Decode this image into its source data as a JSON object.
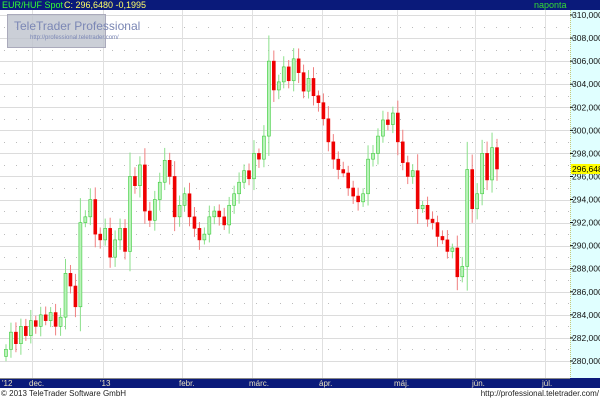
{
  "header": {
    "symbol": "EUR/HUF Spot",
    "quote": "C: 296,6480 -0,1995",
    "interval": "naponta"
  },
  "watermark": {
    "title": "TeleTrader Professional",
    "url": "http://professional.teletrader.com/"
  },
  "footer": {
    "copyright": "© 2013 TeleTrader Software GmbH",
    "url": "http://professional.teletrader.com/"
  },
  "colors": {
    "up_body": "#b9f2b9",
    "up_border": "#3ccc3c",
    "down": "#ee0000",
    "axis_bg": "#e0ffff",
    "bar_bg": "#0a1a7a",
    "last_price_bg": "#ffff00"
  },
  "chart_data": {
    "type": "candlestick",
    "y_ticks": [
      "310,0000",
      "308,0000",
      "306,0000",
      "304,0000",
      "302,0000",
      "300,0000",
      "298,0000",
      "296,0000",
      "294,0000",
      "292,0000",
      "290,0000",
      "288,0000",
      "286,0000",
      "284,0000",
      "282,0000",
      "280,0000"
    ],
    "ylim": [
      279.4,
      310.4
    ],
    "y_axis": "right",
    "x_ticks": [
      "'12",
      "dec.",
      "'13",
      "febr.",
      "márc.",
      "ápr.",
      "máj.",
      "jún.",
      "júl."
    ],
    "last_price": 296.648,
    "last_price_label": "296,6480",
    "grid": true,
    "close": [
      281.0,
      282.5,
      281.5,
      283.0,
      282.2,
      283.5,
      283.0,
      284.0,
      283.5,
      284.2,
      283.0,
      283.8,
      287.6,
      286.5,
      284.7,
      292.0,
      292.5,
      294.0,
      291.0,
      290.5,
      291.5,
      289.0,
      290.5,
      291.5,
      289.5,
      296.0,
      295.2,
      297.0,
      293.0,
      292.2,
      294.0,
      295.5,
      297.4,
      296.0,
      292.5,
      293.5,
      294.5,
      292.5,
      291.5,
      290.5,
      291.0,
      292.5,
      293.0,
      292.5,
      291.8,
      293.5,
      294.5,
      295.5,
      296.5,
      295.8,
      298.0,
      297.5,
      299.5,
      306.0,
      303.5,
      304.2,
      305.5,
      304.3,
      306.2,
      305.0,
      303.4,
      304.5,
      303.0,
      302.4,
      301.0,
      299.0,
      297.5,
      296.6,
      296.3,
      295.0,
      294.3,
      293.8,
      294.5,
      297.5,
      298.0,
      299.5,
      300.9,
      300.5,
      301.5,
      299.0,
      297.2,
      296.0,
      296.5,
      293.2,
      293.5,
      292.3,
      292.0,
      290.8,
      290.5,
      289.5,
      289.8,
      287.3,
      288.2,
      296.6,
      293.2,
      294.5,
      298.0,
      295.7,
      298.5,
      296.648
    ]
  }
}
